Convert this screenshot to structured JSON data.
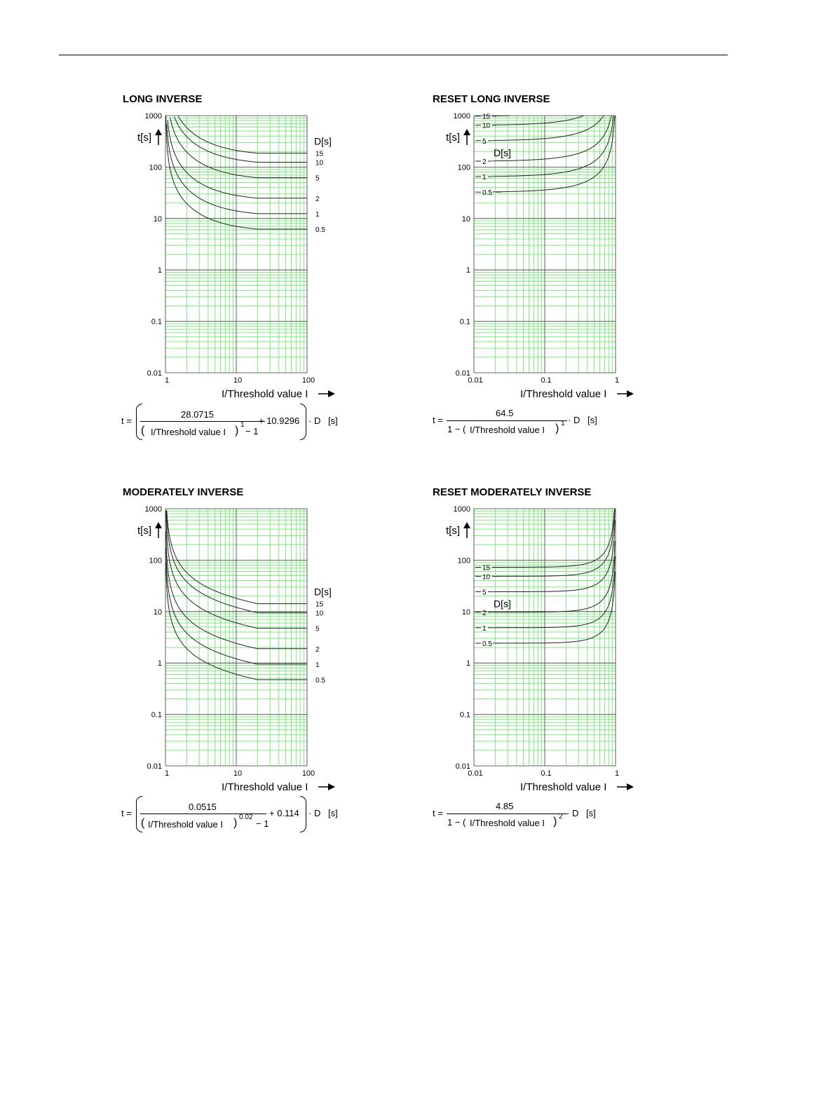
{
  "chart_data": [
    {
      "type": "line",
      "title": "LONG INVERSE",
      "xlabel": "I/Threshold value I",
      "ylabel": "t[s]",
      "x_scale": "log",
      "y_scale": "log",
      "xlim": [
        1,
        100
      ],
      "ylim": [
        0.01,
        1000
      ],
      "x_ticks": [
        "1",
        "10",
        "100"
      ],
      "y_ticks": [
        "0.01",
        "0.1",
        "1",
        "10",
        "100",
        "1000"
      ],
      "legend_title": "D[s]",
      "legend_position": "right",
      "grid": true,
      "curve_family": "long",
      "curve_x_max": 20,
      "series": [
        {
          "name": "15",
          "D": 15
        },
        {
          "name": "10",
          "D": 10
        },
        {
          "name": "5",
          "D": 5
        },
        {
          "name": "2",
          "D": 2
        },
        {
          "name": "1",
          "D": 1
        },
        {
          "name": "0.5",
          "D": 0.5
        }
      ],
      "formula": {
        "prefix": "t =",
        "numerator": "28.0715",
        "denominator": "I/Threshold value I",
        "exponent": "1",
        "minus": "− 1",
        "plus": "+ 10.9296",
        "suffix": "· D",
        "unit": "[s]"
      }
    },
    {
      "type": "line",
      "title": "RESET LONG INVERSE",
      "xlabel": "I/Threshold value I",
      "ylabel": "t[s]",
      "x_scale": "log",
      "y_scale": "log",
      "xlim": [
        0.01,
        1
      ],
      "ylim": [
        0.01,
        1000
      ],
      "x_ticks": [
        "0.01",
        "0.1",
        "1"
      ],
      "y_ticks": [
        "0.01",
        "0.1",
        "1",
        "10",
        "100",
        "1000"
      ],
      "legend_title": "D[s]",
      "legend_position": "top-left",
      "grid": true,
      "curve_family": "reset",
      "reset_k": 64.5,
      "reset_exp": 1,
      "series": [
        {
          "name": "15",
          "D": 15
        },
        {
          "name": "10",
          "D": 10
        },
        {
          "name": "5",
          "D": 5
        },
        {
          "name": "2",
          "D": 2
        },
        {
          "name": "1",
          "D": 1
        },
        {
          "name": "0.5",
          "D": 0.5
        }
      ],
      "formula": {
        "prefix": "t =",
        "numerator": "64.5",
        "denominator_pre": "1 − (",
        "denominator": "I/Threshold value I",
        "exponent": "1",
        "suffix": "· D",
        "unit": "[s]"
      }
    },
    {
      "type": "line",
      "title": "MODERATELY INVERSE",
      "xlabel": "I/Threshold value I",
      "ylabel": "t[s]",
      "x_scale": "log",
      "y_scale": "log",
      "xlim": [
        1,
        100
      ],
      "ylim": [
        0.01,
        1000
      ],
      "x_ticks": [
        "1",
        "10",
        "100"
      ],
      "y_ticks": [
        "0.01",
        "0.1",
        "1",
        "10",
        "100",
        "1000"
      ],
      "legend_title": "D[s]",
      "legend_position": "right",
      "grid": true,
      "curve_family": "moderate",
      "curve_x_max": 20,
      "series": [
        {
          "name": "15",
          "D": 15
        },
        {
          "name": "10",
          "D": 10
        },
        {
          "name": "5",
          "D": 5
        },
        {
          "name": "2",
          "D": 2
        },
        {
          "name": "1",
          "D": 1
        },
        {
          "name": "0.5",
          "D": 0.5
        }
      ],
      "formula": {
        "prefix": "t =",
        "numerator": "0.0515",
        "denominator": "I/Threshold value I",
        "exponent": "0.02",
        "minus": "− 1",
        "plus": "+ 0.114",
        "suffix": "· D",
        "unit": "[s]"
      }
    },
    {
      "type": "line",
      "title": "RESET MODERATELY INVERSE",
      "xlabel": "I/Threshold value I",
      "ylabel": "t[s]",
      "x_scale": "log",
      "y_scale": "log",
      "xlim": [
        0.01,
        1
      ],
      "ylim": [
        0.01,
        1000
      ],
      "x_ticks": [
        "0.01",
        "0.1",
        "1"
      ],
      "y_ticks": [
        "0.01",
        "0.1",
        "1",
        "10",
        "100",
        "1000"
      ],
      "legend_title": "D[s]",
      "legend_position": "top-left",
      "grid": true,
      "curve_family": "reset",
      "reset_k": 4.85,
      "reset_exp": 2,
      "series": [
        {
          "name": "15",
          "D": 15
        },
        {
          "name": "10",
          "D": 10
        },
        {
          "name": "5",
          "D": 5
        },
        {
          "name": "2",
          "D": 2
        },
        {
          "name": "1",
          "D": 1
        },
        {
          "name": "0.5",
          "D": 0.5
        }
      ],
      "formula": {
        "prefix": "t =",
        "numerator": "4.85",
        "denominator_pre": "1 − (",
        "denominator": "I/Threshold value I",
        "exponent": "2",
        "suffix": "· D",
        "unit": "[s]"
      }
    }
  ],
  "colors": {
    "grid_minor": "#7fe87f",
    "grid_major": "#333333",
    "curve": "#222222"
  }
}
